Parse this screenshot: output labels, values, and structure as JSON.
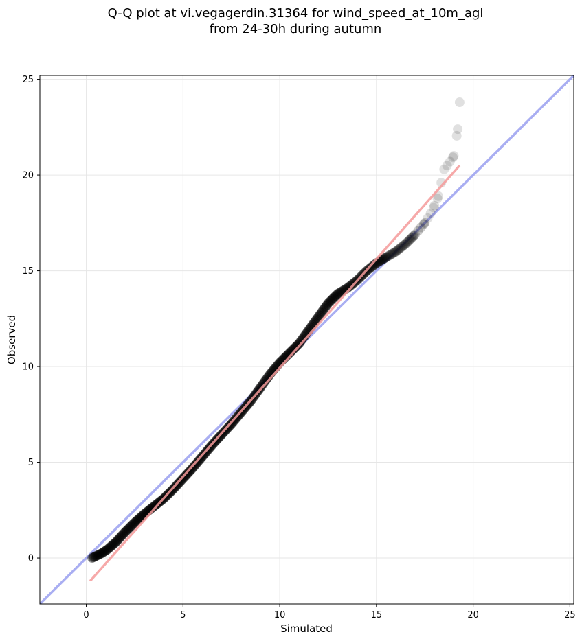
{
  "chart_data": {
    "type": "scatter",
    "title_lines": [
      "Q-Q plot at vi.vegagerdin.31364 for wind_speed_at_10m_agl",
      "from 24-30h during autumn"
    ],
    "xlabel": "Simulated",
    "ylabel": "Observed",
    "xlim": [
      -2.4,
      25.2
    ],
    "ylim": [
      -2.4,
      25.2
    ],
    "x_ticks": [
      0,
      5,
      10,
      15,
      20,
      25
    ],
    "y_ticks": [
      0,
      5,
      10,
      15,
      20,
      25
    ],
    "grid": true,
    "legend": "none",
    "points_curve": {
      "x": [
        0.3,
        0.5,
        0.8,
        1.1,
        1.5,
        2.0,
        2.5,
        3.0,
        3.5,
        4.0,
        4.5,
        5.0,
        5.5,
        6.0,
        6.5,
        7.0,
        7.5,
        8.0,
        8.5,
        9.0,
        9.5,
        10.0,
        10.5,
        11.0,
        11.5,
        12.0,
        12.5,
        13.0,
        13.5,
        14.0,
        14.5,
        15.0,
        15.5,
        16.0,
        16.5,
        17.0,
        17.5,
        17.8,
        18.0,
        18.2,
        18.5,
        18.8,
        19.0,
        19.2,
        19.3
      ],
      "y": [
        0.0,
        0.1,
        0.25,
        0.45,
        0.8,
        1.35,
        1.85,
        2.3,
        2.7,
        3.1,
        3.6,
        4.15,
        4.7,
        5.3,
        5.9,
        6.45,
        7.0,
        7.6,
        8.2,
        8.9,
        9.6,
        10.2,
        10.7,
        11.2,
        11.9,
        12.6,
        13.3,
        13.8,
        14.1,
        14.5,
        15.0,
        15.4,
        15.7,
        16.0,
        16.4,
        16.9,
        17.5,
        18.0,
        18.4,
        18.9,
        20.3,
        20.7,
        21.0,
        22.4,
        23.8
      ]
    },
    "reference_line_1to1": {
      "color": "#9aa0f0",
      "x": [
        -2.4,
        25.2
      ],
      "y": [
        -2.4,
        25.2
      ]
    },
    "fit_line": {
      "color": "#f49a9a",
      "x": [
        0.2,
        19.3
      ],
      "y": [
        -1.2,
        20.5
      ]
    },
    "point_color": "#000000"
  }
}
